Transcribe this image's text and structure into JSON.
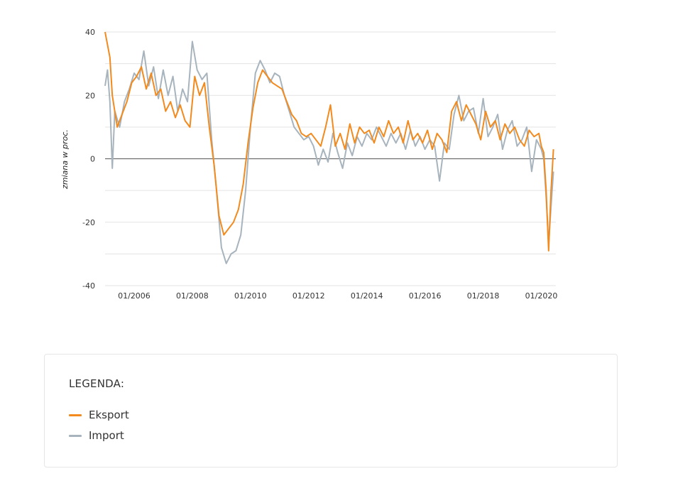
{
  "chart_data": {
    "type": "line",
    "ylabel": "zmiana w proc.",
    "ylim": [
      -40,
      40
    ],
    "yticks": [
      "40",
      "20",
      "0",
      "-20",
      "-40"
    ],
    "xlim": [
      "2005-01",
      "2020-07"
    ],
    "xticks": [
      {
        "date": "2006-01",
        "label": "01/2006"
      },
      {
        "date": "2008-01",
        "label": "01/2008"
      },
      {
        "date": "2010-01",
        "label": "01/2010"
      },
      {
        "date": "2012-01",
        "label": "01/2012"
      },
      {
        "date": "2014-01",
        "label": "01/2014"
      },
      {
        "date": "2016-01",
        "label": "01/2016"
      },
      {
        "date": "2018-01",
        "label": "01/2018"
      },
      {
        "date": "2020-01",
        "label": "01/2020"
      }
    ],
    "grid": true,
    "zero_line": true,
    "series": [
      {
        "name": "Eksport",
        "color": "#f28a1e",
        "points": [
          [
            "2005-01",
            40
          ],
          [
            "2005-03",
            32
          ],
          [
            "2005-04",
            20
          ],
          [
            "2005-06",
            10
          ],
          [
            "2005-08",
            14
          ],
          [
            "2005-10",
            18
          ],
          [
            "2005-12",
            24
          ],
          [
            "2006-02",
            26
          ],
          [
            "2006-04",
            29
          ],
          [
            "2006-06",
            22
          ],
          [
            "2006-08",
            27
          ],
          [
            "2006-10",
            20
          ],
          [
            "2006-12",
            22
          ],
          [
            "2007-02",
            15
          ],
          [
            "2007-04",
            18
          ],
          [
            "2007-06",
            13
          ],
          [
            "2007-08",
            17
          ],
          [
            "2007-10",
            12
          ],
          [
            "2007-12",
            10
          ],
          [
            "2008-02",
            26
          ],
          [
            "2008-04",
            20
          ],
          [
            "2008-06",
            24
          ],
          [
            "2008-08",
            10
          ],
          [
            "2008-10",
            -2
          ],
          [
            "2008-12",
            -18
          ],
          [
            "2009-02",
            -24
          ],
          [
            "2009-04",
            -22
          ],
          [
            "2009-06",
            -20
          ],
          [
            "2009-08",
            -16
          ],
          [
            "2009-10",
            -8
          ],
          [
            "2009-12",
            5
          ],
          [
            "2010-02",
            16
          ],
          [
            "2010-04",
            24
          ],
          [
            "2010-06",
            28
          ],
          [
            "2010-08",
            26
          ],
          [
            "2010-10",
            24
          ],
          [
            "2010-12",
            23
          ],
          [
            "2011-02",
            22
          ],
          [
            "2011-04",
            18
          ],
          [
            "2011-06",
            14
          ],
          [
            "2011-08",
            12
          ],
          [
            "2011-10",
            8
          ],
          [
            "2011-12",
            7
          ],
          [
            "2012-02",
            8
          ],
          [
            "2012-04",
            6
          ],
          [
            "2012-06",
            4
          ],
          [
            "2012-08",
            10
          ],
          [
            "2012-10",
            17
          ],
          [
            "2012-12",
            4
          ],
          [
            "2013-02",
            8
          ],
          [
            "2013-04",
            3
          ],
          [
            "2013-06",
            11
          ],
          [
            "2013-08",
            5
          ],
          [
            "2013-10",
            10
          ],
          [
            "2013-12",
            8
          ],
          [
            "2014-02",
            9
          ],
          [
            "2014-04",
            5
          ],
          [
            "2014-06",
            10
          ],
          [
            "2014-08",
            7
          ],
          [
            "2014-10",
            12
          ],
          [
            "2014-12",
            8
          ],
          [
            "2015-02",
            10
          ],
          [
            "2015-04",
            5
          ],
          [
            "2015-06",
            12
          ],
          [
            "2015-08",
            6
          ],
          [
            "2015-10",
            8
          ],
          [
            "2015-12",
            5
          ],
          [
            "2016-02",
            9
          ],
          [
            "2016-04",
            3
          ],
          [
            "2016-06",
            8
          ],
          [
            "2016-08",
            6
          ],
          [
            "2016-10",
            2
          ],
          [
            "2016-12",
            15
          ],
          [
            "2017-02",
            18
          ],
          [
            "2017-04",
            12
          ],
          [
            "2017-06",
            17
          ],
          [
            "2017-08",
            14
          ],
          [
            "2017-10",
            11
          ],
          [
            "2017-12",
            6
          ],
          [
            "2018-02",
            15
          ],
          [
            "2018-04",
            10
          ],
          [
            "2018-06",
            12
          ],
          [
            "2018-08",
            6
          ],
          [
            "2018-10",
            11
          ],
          [
            "2018-12",
            8
          ],
          [
            "2019-02",
            10
          ],
          [
            "2019-04",
            6
          ],
          [
            "2019-06",
            4
          ],
          [
            "2019-08",
            9
          ],
          [
            "2019-10",
            7
          ],
          [
            "2019-12",
            8
          ],
          [
            "2020-01",
            4
          ],
          [
            "2020-02",
            2
          ],
          [
            "2020-03",
            -10
          ],
          [
            "2020-04",
            -29
          ],
          [
            "2020-05",
            -10
          ],
          [
            "2020-06",
            3
          ]
        ]
      },
      {
        "name": "Import",
        "color": "#a8b4bd",
        "points": [
          [
            "2005-01",
            23
          ],
          [
            "2005-02",
            28
          ],
          [
            "2005-03",
            18
          ],
          [
            "2005-04",
            -3
          ],
          [
            "2005-05",
            15
          ],
          [
            "2005-07",
            10
          ],
          [
            "2005-09",
            18
          ],
          [
            "2005-11",
            22
          ],
          [
            "2006-01",
            27
          ],
          [
            "2006-03",
            25
          ],
          [
            "2006-05",
            34
          ],
          [
            "2006-07",
            23
          ],
          [
            "2006-09",
            29
          ],
          [
            "2006-11",
            19
          ],
          [
            "2007-01",
            28
          ],
          [
            "2007-03",
            20
          ],
          [
            "2007-05",
            26
          ],
          [
            "2007-07",
            15
          ],
          [
            "2007-09",
            22
          ],
          [
            "2007-11",
            18
          ],
          [
            "2008-01",
            37
          ],
          [
            "2008-03",
            28
          ],
          [
            "2008-05",
            25
          ],
          [
            "2008-07",
            27
          ],
          [
            "2008-09",
            6
          ],
          [
            "2008-11",
            -10
          ],
          [
            "2009-01",
            -28
          ],
          [
            "2009-03",
            -33
          ],
          [
            "2009-05",
            -30
          ],
          [
            "2009-07",
            -29
          ],
          [
            "2009-09",
            -24
          ],
          [
            "2009-11",
            -10
          ],
          [
            "2010-01",
            10
          ],
          [
            "2010-03",
            27
          ],
          [
            "2010-05",
            31
          ],
          [
            "2010-07",
            28
          ],
          [
            "2010-09",
            24
          ],
          [
            "2010-11",
            27
          ],
          [
            "2011-01",
            26
          ],
          [
            "2011-03",
            20
          ],
          [
            "2011-05",
            15
          ],
          [
            "2011-07",
            10
          ],
          [
            "2011-09",
            8
          ],
          [
            "2011-11",
            6
          ],
          [
            "2012-01",
            7
          ],
          [
            "2012-03",
            4
          ],
          [
            "2012-05",
            -2
          ],
          [
            "2012-07",
            3
          ],
          [
            "2012-09",
            -1
          ],
          [
            "2012-11",
            8
          ],
          [
            "2013-01",
            2
          ],
          [
            "2013-03",
            -3
          ],
          [
            "2013-05",
            5
          ],
          [
            "2013-07",
            1
          ],
          [
            "2013-09",
            7
          ],
          [
            "2013-11",
            4
          ],
          [
            "2014-01",
            8
          ],
          [
            "2014-03",
            6
          ],
          [
            "2014-05",
            10
          ],
          [
            "2014-07",
            7
          ],
          [
            "2014-09",
            4
          ],
          [
            "2014-11",
            8
          ],
          [
            "2015-01",
            5
          ],
          [
            "2015-03",
            8
          ],
          [
            "2015-05",
            3
          ],
          [
            "2015-07",
            9
          ],
          [
            "2015-09",
            4
          ],
          [
            "2015-11",
            7
          ],
          [
            "2016-01",
            3
          ],
          [
            "2016-03",
            6
          ],
          [
            "2016-05",
            4
          ],
          [
            "2016-07",
            -7
          ],
          [
            "2016-09",
            5
          ],
          [
            "2016-11",
            3
          ],
          [
            "2017-01",
            14
          ],
          [
            "2017-03",
            20
          ],
          [
            "2017-05",
            12
          ],
          [
            "2017-07",
            15
          ],
          [
            "2017-09",
            16
          ],
          [
            "2017-11",
            8
          ],
          [
            "2018-01",
            19
          ],
          [
            "2018-03",
            7
          ],
          [
            "2018-05",
            10
          ],
          [
            "2018-07",
            14
          ],
          [
            "2018-09",
            3
          ],
          [
            "2018-11",
            9
          ],
          [
            "2019-01",
            12
          ],
          [
            "2019-03",
            4
          ],
          [
            "2019-05",
            6
          ],
          [
            "2019-07",
            10
          ],
          [
            "2019-09",
            -4
          ],
          [
            "2019-11",
            6
          ],
          [
            "2020-01",
            3
          ],
          [
            "2020-02",
            0
          ],
          [
            "2020-03",
            -12
          ],
          [
            "2020-04",
            -27
          ],
          [
            "2020-05",
            -15
          ],
          [
            "2020-06",
            -4
          ]
        ]
      }
    ]
  },
  "legend": {
    "title": "LEGENDA:",
    "items": [
      {
        "label": "Eksport",
        "color": "#f28a1e"
      },
      {
        "label": "Import",
        "color": "#a8b4bd"
      }
    ]
  }
}
